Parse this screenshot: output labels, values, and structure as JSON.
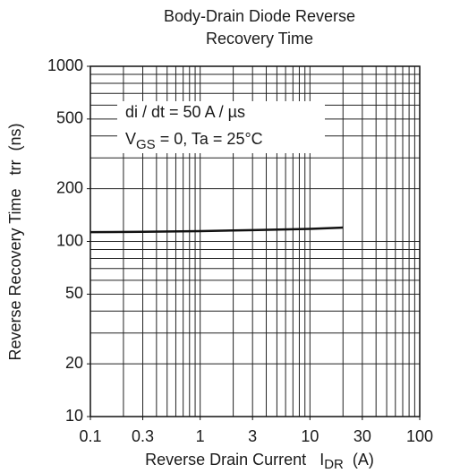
{
  "chart_data": {
    "type": "line",
    "title": [
      "Body-Drain Diode Reverse",
      "Recovery Time"
    ],
    "x_label": [
      "Reverse Drain Current   I",
      "DR",
      "  (A)"
    ],
    "y_label": "Reverse Recovery Time   trr  (ns)",
    "annotations": [
      "di / dt = 50 A / µs",
      "V",
      "GS",
      " = 0, Ta = 25°C"
    ],
    "x": [
      0.1,
      0.3,
      1,
      3,
      10,
      20
    ],
    "series": [
      {
        "color": "#111111",
        "values": [
          113,
          113.5,
          114.5,
          116,
          118,
          120
        ]
      }
    ],
    "xlim": [
      0.1,
      100
    ],
    "ylim": [
      10,
      1000
    ],
    "xlog": true,
    "ylog": true,
    "xticks": [
      0.1,
      0.3,
      1,
      3,
      10,
      30,
      100
    ],
    "yticks": [
      10,
      20,
      50,
      100,
      200,
      500,
      1000
    ],
    "xgrid": [
      0.1,
      0.2,
      0.3,
      0.4,
      0.5,
      0.6,
      0.7,
      0.8,
      0.9,
      1,
      2,
      3,
      4,
      5,
      6,
      7,
      8,
      9,
      10,
      20,
      30,
      40,
      50,
      60,
      70,
      80,
      90,
      100
    ],
    "ygrid": [
      10,
      20,
      30,
      40,
      50,
      60,
      70,
      80,
      90,
      100,
      200,
      300,
      400,
      500,
      600,
      700,
      800,
      900,
      1000
    ],
    "grid": true
  }
}
